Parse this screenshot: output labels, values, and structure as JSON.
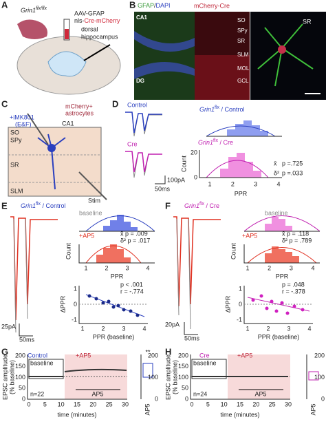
{
  "A": {
    "label": "A",
    "gene": "Grin1",
    "sup": "flx/flx",
    "virus": "AAV-GFAP",
    "virus2a": "nls-",
    "virus2b": "Cre-mCherry",
    "target": [
      "dorsal",
      "hippocampus"
    ]
  },
  "B": {
    "label": "B",
    "stain_a": "GFAP",
    "stain_sep": "/",
    "stain_b": "DAPI",
    "stain2": "mCherry-Cre",
    "regions": [
      "CA1",
      "DG"
    ],
    "layers": [
      "SO",
      "SPy",
      "SR",
      "SLM",
      "MOL",
      "GCL"
    ],
    "zoom": "SR"
  },
  "C": {
    "label": "C",
    "drug": [
      "+iMK801",
      "(E&F)"
    ],
    "cells": [
      "mCherry+",
      "astrocytes"
    ],
    "region": "CA1",
    "layers": [
      "SO",
      "SPy",
      "SR",
      "SLM"
    ],
    "stim": "Stim"
  },
  "D": {
    "label": "D",
    "traces": [
      "Control",
      "Cre"
    ],
    "h1": {
      "gene": "Grin1",
      "sup": "flx",
      "rest": " / Control"
    },
    "h2": {
      "gene": "Grin1",
      "sup": "flx",
      "rest": " / Cre"
    },
    "stats": [
      "x̄",
      "p =.725",
      "δ²",
      "p =.033"
    ],
    "ylabel": "Count",
    "xlabel": "PPR",
    "yticks": [
      20,
      0
    ],
    "xticks": [
      1,
      2,
      3,
      4
    ],
    "scale": [
      "100pA",
      "50ms"
    ]
  },
  "E": {
    "label": "E",
    "title": {
      "gene": "Grin1",
      "sup": "flx",
      "rest": " / Control"
    },
    "h1": "baseline",
    "h2": "+AP5",
    "stats": [
      "x̄ p = .009",
      "δ² p = .017"
    ],
    "ylabel": "Count",
    "xlabel": "PPR",
    "xticks": [
      1,
      2,
      3,
      4
    ],
    "corr": [
      "p < .001",
      "r = -.774"
    ],
    "sylabel": "ΔPPR",
    "sxlabel": "PPR (baseline)",
    "syticks": [
      1,
      0,
      -1
    ],
    "sxticks": [
      1,
      2,
      3,
      4
    ],
    "scale": [
      "25pA",
      "50ms"
    ]
  },
  "F": {
    "label": "F",
    "title": {
      "gene": "Grin1",
      "sup": "flx",
      "rest": " / Cre"
    },
    "h1": "baseline",
    "h2": "+AP5",
    "stats": [
      "x̄ p = .118",
      "δ² p = .789"
    ],
    "ylabel": "Count",
    "xlabel": "PPR",
    "xticks": [
      1,
      2,
      3,
      4
    ],
    "corr": [
      "p = .048",
      "r = -.378"
    ],
    "sylabel": "ΔPPR",
    "sxlabel": "PPR (baseline)",
    "syticks": [
      1,
      0,
      -1
    ],
    "sxticks": [
      1,
      2,
      3,
      4
    ],
    "scale": [
      "20pA",
      "50ms"
    ]
  },
  "G": {
    "label": "G",
    "legend": "Control",
    "drug": "+AP5",
    "baseline": "baseline",
    "n": "n=22",
    "bar": "AP5",
    "ylabel": [
      "EPSC amplitude",
      "(% baseline)"
    ],
    "xlabel": "time (minutes)",
    "yticks": [
      200,
      150,
      100,
      50,
      0
    ],
    "xticks": [
      0,
      5,
      10,
      15,
      20,
      25,
      30
    ],
    "sig": "**",
    "box_label": "AP5",
    "box_ticks": [
      200,
      100,
      0
    ]
  },
  "H": {
    "label": "H",
    "legend": "Cre",
    "drug": "+AP5",
    "baseline": "baseline",
    "n": "n=24",
    "bar": "AP5",
    "ylabel": [
      "EPSC amplitude",
      "(% baseline)"
    ],
    "xlabel": "time (minutes)",
    "yticks": [
      200,
      150,
      100,
      50,
      0
    ],
    "xticks": [
      0,
      5,
      10,
      15,
      20,
      25,
      30
    ],
    "box_label": "AP5",
    "box_ticks": [
      200,
      100,
      0
    ]
  }
}
